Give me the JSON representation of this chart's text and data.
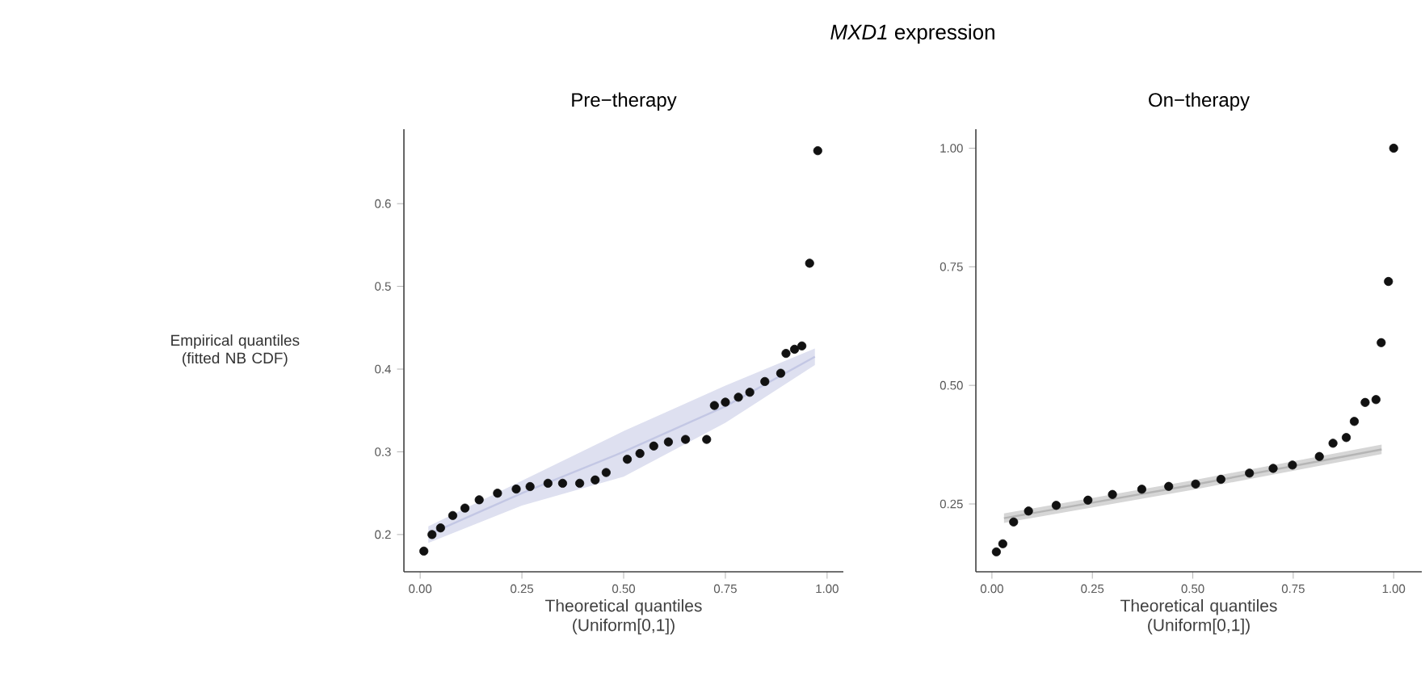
{
  "chart_data": [
    {
      "type": "scatter",
      "title": "Pre−therapy",
      "xlabel": "Theoretical quantiles (Uniform[0,1])",
      "ylabel": "Empirical quantiles (fitted NB CDF)",
      "annotations": [
        "*MXD1* expression"
      ],
      "xlim": [
        -0.04,
        1.04
      ],
      "ylim": [
        0.155,
        0.69
      ],
      "xticks": [
        {
          "value": 0,
          "label": "0.00"
        },
        {
          "value": 0.25,
          "label": "0.25"
        },
        {
          "value": 0.5,
          "label": "0.50"
        },
        {
          "value": 0.75,
          "label": "0.75"
        },
        {
          "value": 1,
          "label": "1.00"
        }
      ],
      "yticks": [
        {
          "value": 0.2,
          "label": "0.2"
        },
        {
          "value": 0.3,
          "label": "0.3"
        },
        {
          "value": 0.4,
          "label": "0.4"
        },
        {
          "value": 0.5,
          "label": "0.5"
        },
        {
          "value": 0.6,
          "label": "0.6"
        }
      ],
      "series": [
        {
          "type": "line",
          "color": "#c3c7e4",
          "x": [
            0.02,
            0.25,
            0.5,
            0.75,
            0.97
          ],
          "values": [
            0.2,
            0.25,
            0.3,
            0.355,
            0.415
          ],
          "lower": [
            0.19,
            0.235,
            0.27,
            0.335,
            0.405
          ],
          "upper": [
            0.21,
            0.265,
            0.325,
            0.38,
            0.425
          ]
        },
        {
          "color": "#111111",
          "x": [
            0.009,
            0.029,
            0.05,
            0.08,
            0.11,
            0.145,
            0.19,
            0.236,
            0.27,
            0.314,
            0.35,
            0.392,
            0.43,
            0.457,
            0.509,
            0.54,
            0.574,
            0.61,
            0.652,
            0.704,
            0.723,
            0.75,
            0.782,
            0.81,
            0.847,
            0.886,
            0.899,
            0.92,
            0.938,
            0.957,
            0.977
          ],
          "values": [
            0.18,
            0.2,
            0.208,
            0.223,
            0.232,
            0.242,
            0.25,
            0.255,
            0.258,
            0.262,
            0.262,
            0.262,
            0.266,
            0.275,
            0.291,
            0.298,
            0.307,
            0.312,
            0.315,
            0.315,
            0.356,
            0.36,
            0.366,
            0.372,
            0.385,
            0.395,
            0.419,
            0.424,
            0.428,
            0.528,
            0.664
          ]
        }
      ]
    },
    {
      "type": "scatter",
      "title": "On−therapy",
      "xlabel": "Theoretical quantiles (Uniform[0,1])",
      "xlim": [
        -0.04,
        1.07
      ],
      "ylim": [
        0.107,
        1.04
      ],
      "xticks": [
        {
          "value": 0,
          "label": "0.00"
        },
        {
          "value": 0.25,
          "label": "0.25"
        },
        {
          "value": 0.5,
          "label": "0.50"
        },
        {
          "value": 0.75,
          "label": "0.75"
        },
        {
          "value": 1,
          "label": "1.00"
        }
      ],
      "yticks": [
        {
          "value": 0.25,
          "label": "0.25"
        },
        {
          "value": 0.5,
          "label": "0.50"
        },
        {
          "value": 0.75,
          "label": "0.75"
        },
        {
          "value": 1,
          "label": "1.00"
        }
      ],
      "series": [
        {
          "type": "line",
          "color": "#b5b5b5",
          "x": [
            0.03,
            0.5,
            0.97
          ],
          "values": [
            0.22,
            0.29,
            0.365
          ],
          "lower": [
            0.21,
            0.28,
            0.355
          ],
          "upper": [
            0.23,
            0.3,
            0.375
          ]
        },
        {
          "color": "#111111",
          "x": [
            0.011,
            0.027,
            0.054,
            0.091,
            0.16,
            0.239,
            0.3,
            0.373,
            0.44,
            0.507,
            0.57,
            0.641,
            0.7,
            0.748,
            0.815,
            0.849,
            0.882,
            0.902,
            0.929,
            0.956,
            0.969,
            0.987,
            1.0
          ],
          "values": [
            0.149,
            0.166,
            0.212,
            0.235,
            0.247,
            0.258,
            0.27,
            0.281,
            0.287,
            0.292,
            0.302,
            0.315,
            0.325,
            0.332,
            0.35,
            0.378,
            0.39,
            0.424,
            0.464,
            0.47,
            0.59,
            0.719,
            1.0
          ]
        }
      ]
    }
  ]
}
